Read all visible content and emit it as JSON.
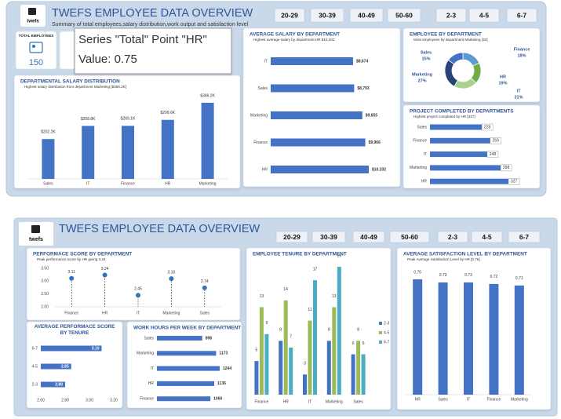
{
  "dashboards": [
    {
      "logo": "twefs",
      "title": "TWEFS EMPLOYEE DATA OVERVIEW",
      "subtitle": "Summary of total employees,salary distribution,work output and satisfaction level",
      "age_slicers": [
        "20-29",
        "30-39",
        "40-49",
        "50-60"
      ],
      "tenure_slicers": [
        "2-3",
        "4-5",
        "6-7"
      ]
    },
    {
      "logo": "twefs",
      "title": "TWEFS EMPLOYEE DATA OVERVIEW",
      "age_slicers": [
        "20-29",
        "30-39",
        "40-49",
        "50-60"
      ],
      "tenure_slicers": [
        "2-3",
        "4-5",
        "6-7"
      ]
    }
  ],
  "kpis": [
    {
      "label": "TOTAL EMPLOYEES",
      "value": 150
    }
  ],
  "tooltip": {
    "line1": "Series \"Total\" Point \"HR\"",
    "line2": "Value: 0.75"
  },
  "chart_data": [
    {
      "type": "bar",
      "title": "DEPARTMENTAL SALARY DISTRIBUTION",
      "subtitle": "Highest salary distribution from department Marketing [$386.2K]",
      "categories": [
        "Sales",
        "IT",
        "Finance",
        "HR",
        "Marketing"
      ],
      "values": [
        202200,
        268800,
        269100,
        299600,
        386200
      ],
      "value_labels": [
        "$202.2K",
        "$268.8K",
        "$269.1K",
        "$299.6K",
        "$386.2K"
      ],
      "color": "#4472c4"
    },
    {
      "type": "bar",
      "orientation": "horizontal",
      "title": "AVERAGE SALARY BY DEPARTMENT",
      "subtitle": "Highest average salary by department HR $10,332",
      "categories": [
        "IT",
        "Sales",
        "Marketing",
        "Finance",
        "HR"
      ],
      "values": [
        8674,
        8793,
        9655,
        9966,
        10332
      ],
      "value_labels": [
        "$8,674",
        "$8,793",
        "$9,655",
        "$9,966",
        "$10,332"
      ],
      "color": "#4472c4"
    },
    {
      "type": "pie",
      "donut": true,
      "title": "EMPLOYEE BY DEPARTMENT",
      "subtitle": "Most employees by department Marketing [40]",
      "categories": [
        "Finance",
        "HR",
        "IT",
        "Marketing",
        "Sales"
      ],
      "values": [
        18,
        19,
        21,
        27,
        15
      ],
      "value_labels": [
        "18%",
        "19%",
        "21%",
        "27%",
        "15%"
      ],
      "colors": [
        "#5b9bd5",
        "#70ad47",
        "#a9d18e",
        "#264478",
        "#4472c4"
      ]
    },
    {
      "type": "bar",
      "orientation": "horizontal",
      "title": "PROJECT COMPLETED BY DEPARTMENTS",
      "subtitle": "Highest project completed by HR [327]",
      "categories": [
        "Sales",
        "Finance",
        "IT",
        "Marketing",
        "HR"
      ],
      "values": [
        228,
        259,
        248,
        298,
        327
      ],
      "color": "#4472c4"
    },
    {
      "type": "lollipop",
      "title": "PERFORMACE SCORE BY DEPARTMENT",
      "subtitle": "Peak performance score by HR giving 3.24",
      "categories": [
        "Finance",
        "HR",
        "IT",
        "Marketing",
        "Sales"
      ],
      "values": [
        3.11,
        3.24,
        2.45,
        3.1,
        2.74
      ],
      "value_labels": [
        "3.11",
        "3.24",
        "2.45",
        "3.10",
        "2.74"
      ],
      "color": "#2e75b6",
      "ylim": [
        2,
        3.5
      ],
      "yticks": [
        {
          "value": 2,
          "label": "2.00"
        },
        {
          "value": 2.5,
          "label": "2.50"
        },
        {
          "value": 3,
          "label": "3.00"
        },
        {
          "value": 3.5,
          "label": "3.50"
        }
      ]
    },
    {
      "type": "bar",
      "orientation": "horizontal",
      "title": "AVERAGE PERFORMACE SCORE BY TENURE",
      "categories": [
        "6-7",
        "4-5",
        "2-3"
      ],
      "values": [
        3.1,
        2.85,
        2.8
      ],
      "value_labels": [
        "3.10",
        "2.85",
        "2.80"
      ],
      "color": "#4472c4",
      "xlim": [
        2.6,
        3.2
      ],
      "xticks": [
        {
          "value": 2.6,
          "label": "2.60"
        },
        {
          "value": 2.8,
          "label": "2.80"
        },
        {
          "value": 3,
          "label": "3.00"
        },
        {
          "value": 3.2,
          "label": "3.20"
        }
      ]
    },
    {
      "type": "bar",
      "orientation": "horizontal",
      "title": "WORK HOURS PER WEEK BY DEPARTMENT",
      "categories": [
        "Sales",
        "Marketing",
        "IT",
        "HR",
        "Finance"
      ],
      "values": [
        898,
        1173,
        1244,
        1136,
        1060
      ],
      "color": "#4472c4"
    },
    {
      "type": "grouped_bar",
      "title": "EMPLOYEE TENURE BY DEPARTMENT",
      "categories": [
        "Finance",
        "HR",
        "IT",
        "Marketing",
        "Sales"
      ],
      "series": [
        {
          "name": "2-3",
          "color": "#4472c4",
          "values": [
            5,
            8,
            3,
            8,
            6
          ]
        },
        {
          "name": "4-5",
          "color": "#9bbb59",
          "values": [
            13,
            14,
            11,
            13,
            8
          ]
        },
        {
          "name": "6-7",
          "color": "#4bacc6",
          "values": [
            9,
            7,
            17,
            19,
            6
          ]
        }
      ]
    },
    {
      "type": "bar",
      "title": "AVERAGE SATISFACTION LEVEL BY DEPARTMENT",
      "subtitle": "Peak Average Satisfaction Level by HR [0.75]",
      "categories": [
        "HR",
        "Sales",
        "IT",
        "Finance",
        "Marketing"
      ],
      "values": [
        0.75,
        0.73,
        0.73,
        0.72,
        0.71
      ],
      "color": "#4472c4"
    }
  ]
}
